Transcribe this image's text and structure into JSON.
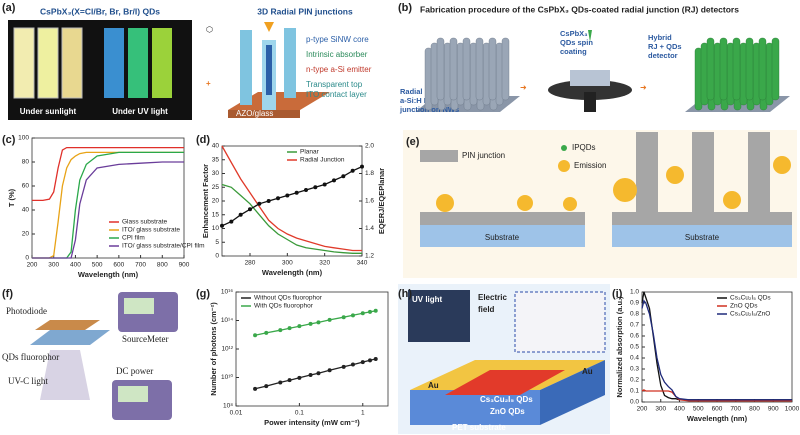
{
  "panels": {
    "a": {
      "label": "(a)",
      "title": "CsPbX₃(X=Cl/Br, Br, Br/I) QDs",
      "photo_labels": [
        "Under sunlight",
        "Under UV light"
      ],
      "title2": "3D Radial PIN junctions",
      "layers": [
        "p-type SiNW core",
        "Intrinsic absorber",
        "n-type a-Si emitter",
        "Transparent top",
        "ITO contact layer"
      ],
      "substrate": "AZO/glass"
    },
    "b": {
      "label": "(b)",
      "title": "Fabrication procedure of the CsPbX₃ QDs-coated radial junction (RJ) detectors",
      "step1": [
        "Radial",
        "a-Si:H PIN",
        "junction on NWs"
      ],
      "step2": [
        "CsPbX₃",
        "QDs spin",
        "coating"
      ],
      "step3": [
        "Hybrid",
        "RJ + QDs",
        "detector"
      ]
    },
    "c": {
      "label": "(c)"
    },
    "d": {
      "label": "(d)"
    },
    "e": {
      "label": "(e)",
      "legend": [
        "PIN junction",
        "IPQDs",
        "Emission"
      ],
      "substrates": [
        "Substrate",
        "Substrate"
      ]
    },
    "f": {
      "label": "(f)",
      "texts": [
        "Photodiode",
        "SourceMeter",
        "QDs fluorophor",
        "DC power",
        "UV-C light"
      ]
    },
    "g": {
      "label": "(g)"
    },
    "h": {
      "label": "(h)",
      "uv": "UV light",
      "field": [
        "Electric",
        "field"
      ],
      "electrodes": [
        "Au",
        "Au"
      ],
      "layers": [
        "Cs₃Cu₂I₅ QDs",
        "ZnO QDs",
        "PET substrate"
      ]
    },
    "i": {
      "label": "(i)"
    }
  },
  "chart_data": [
    {
      "type": "line",
      "xlabel": "Wavelength (nm)",
      "ylabel": "T (%)",
      "xlim": [
        200,
        900
      ],
      "xticks": [
        200,
        300,
        400,
        500,
        600,
        700,
        800,
        900
      ],
      "ylim": [
        0,
        100
      ],
      "yticks": [
        0,
        20,
        40,
        60,
        80,
        100
      ],
      "legend": "lower-right",
      "x": [
        200,
        250,
        280,
        300,
        320,
        340,
        360,
        380,
        400,
        420,
        450,
        500,
        600,
        700,
        800,
        900
      ],
      "series": [
        {
          "name": "Glass substrate",
          "color": "#e0302a",
          "values": [
            48,
            48,
            49,
            55,
            75,
            90,
            92,
            92,
            92,
            92,
            92,
            92,
            92,
            92,
            92,
            92
          ]
        },
        {
          "name": "ITO/ glass substrate",
          "color": "#e8a317",
          "values": [
            0,
            0,
            0,
            2,
            30,
            60,
            75,
            82,
            85,
            87,
            88,
            88,
            88,
            88,
            88,
            88
          ]
        },
        {
          "name": "CPI film",
          "color": "#2aa84a",
          "values": [
            0,
            0,
            0,
            0,
            0,
            0,
            0,
            5,
            40,
            65,
            78,
            85,
            88,
            88,
            88,
            88
          ]
        },
        {
          "name": "ITO/ glass substrate/CPI film",
          "color": "#6a3d9a",
          "values": [
            0,
            0,
            0,
            0,
            0,
            0,
            0,
            0,
            15,
            45,
            65,
            75,
            78,
            79,
            80,
            80
          ]
        }
      ]
    },
    {
      "type": "line",
      "xlabel": "Wavelength (nm)",
      "ylabel": "Enhancement Factor",
      "y2label": "EQERJ/EQEPlanar",
      "xlim": [
        265,
        340
      ],
      "xticks": [
        280,
        300,
        320,
        340
      ],
      "ylim": [
        0,
        40
      ],
      "yticks": [
        0,
        5,
        10,
        15,
        20,
        25,
        30,
        35,
        40
      ],
      "y2lim": [
        1.2,
        2.0
      ],
      "y2ticks": [
        1.2,
        1.4,
        1.6,
        1.8,
        {
          "value": 2.0,
          "label": "2.0"
        }
      ],
      "legend": "upper-right",
      "x": [
        265,
        270,
        275,
        280,
        285,
        290,
        295,
        300,
        305,
        310,
        315,
        320,
        325,
        330,
        335,
        340
      ],
      "series": [
        {
          "name": "Planar",
          "color": "#3a9a3a",
          "values": [
            26,
            25,
            22,
            19,
            15,
            11,
            8,
            6,
            4,
            3,
            2.5,
            2,
            1.5,
            1.2,
            1,
            1
          ]
        },
        {
          "name": "Radial Junction",
          "color": "#e03a2a",
          "values": [
            40,
            34,
            28,
            23,
            18,
            13,
            10,
            8,
            6.5,
            5.5,
            4.5,
            3.5,
            3,
            2.5,
            2,
            2
          ]
        },
        {
          "color": "#111111",
          "axis": "y2",
          "markers": true,
          "values": [
            1.42,
            1.45,
            1.5,
            1.54,
            1.58,
            1.6,
            1.62,
            1.64,
            1.66,
            1.68,
            1.7,
            1.72,
            1.75,
            1.78,
            1.82,
            1.85
          ]
        }
      ]
    },
    {
      "type": "line",
      "xlabel": "Power intensity (mW cm⁻²)",
      "ylabel": "Number of photons (cm⁻²)",
      "xlog": true,
      "ylog": true,
      "xlim": [
        0.01,
        2.5
      ],
      "xticks": [
        0.01,
        0.1,
        1
      ],
      "ylim": [
        100000000,
        10000000000000000
      ],
      "yticks": [
        {
          "value": 100000000,
          "label": "10⁸"
        },
        {
          "value": 10000000000,
          "label": "10¹⁰"
        },
        {
          "value": 1000000000000,
          "label": "10¹²"
        },
        {
          "value": 100000000000000,
          "label": "10¹⁴"
        },
        {
          "value": 10000000000000000,
          "label": "10¹⁶"
        }
      ],
      "legend": "upper-left",
      "x": [
        0.02,
        0.03,
        0.05,
        0.07,
        0.1,
        0.15,
        0.2,
        0.3,
        0.5,
        0.7,
        1,
        1.3,
        1.6
      ],
      "series": [
        {
          "name": "Without QDs fluorophor",
          "color": "#222222",
          "markers": true,
          "values": [
            1600000000,
            2500000000,
            4500000000,
            6500000000,
            9500000000,
            15000000000,
            20000000000,
            32000000000,
            56000000000,
            81000000000,
            120000000000,
            160000000000,
            200000000000
          ]
        },
        {
          "name": "With QDs fluorophor",
          "color": "#3aa84a",
          "markers": true,
          "values": [
            9300000000000,
            13500000000000,
            21000000000000,
            29000000000000,
            40000000000000,
            58000000000000,
            74000000000000,
            110000000000000,
            170000000000000,
            230000000000000,
            320000000000000,
            400000000000000,
            480000000000000
          ]
        }
      ]
    },
    {
      "type": "line",
      "xlabel": "Wavelength (nm)",
      "ylabel": "Normalized absorption (a.u.)",
      "xlim": [
        200,
        1000
      ],
      "xticks": [
        200,
        300,
        400,
        500,
        600,
        700,
        800,
        900,
        1000
      ],
      "ylim": [
        0,
        1.0
      ],
      "yticks": [
        {
          "value": 0,
          "label": "0.0"
        },
        0.1,
        0.2,
        0.3,
        0.4,
        0.5,
        0.6,
        0.7,
        0.8,
        0.9,
        {
          "value": 1.0,
          "label": "1.0"
        }
      ],
      "legend": "upper-right",
      "x": [
        200,
        210,
        220,
        240,
        260,
        280,
        300,
        320,
        340,
        360,
        380,
        400,
        450,
        500,
        600,
        700,
        800,
        900,
        1000
      ],
      "series": [
        {
          "name": "Cs₃Cu₂I₅ QDs",
          "color": "#111111",
          "values": [
            0.9,
            1.0,
            0.95,
            0.85,
            0.6,
            0.35,
            0.15,
            0.06,
            0.04,
            0.03,
            0.03,
            0.02,
            0.02,
            0.02,
            0.02,
            0.02,
            0.02,
            0.02,
            0.02
          ]
        },
        {
          "name": "ZnO QDs",
          "color": "#d03020",
          "values": [
            0.1,
            0.11,
            0.1,
            0.1,
            0.1,
            0.1,
            0.1,
            0.1,
            0.1,
            0.09,
            0.05,
            0.02,
            0.01,
            0.01,
            0.01,
            0.01,
            0.01,
            0.01,
            0.01
          ]
        },
        {
          "name": "Cs₃Cu₂I₅/ZnO",
          "color": "#1f2a7a",
          "values": [
            0.85,
            0.92,
            0.9,
            0.8,
            0.62,
            0.4,
            0.25,
            0.18,
            0.14,
            0.11,
            0.05,
            0.03,
            0.02,
            0.02,
            0.02,
            0.02,
            0.02,
            0.02,
            0.02
          ]
        }
      ]
    }
  ]
}
